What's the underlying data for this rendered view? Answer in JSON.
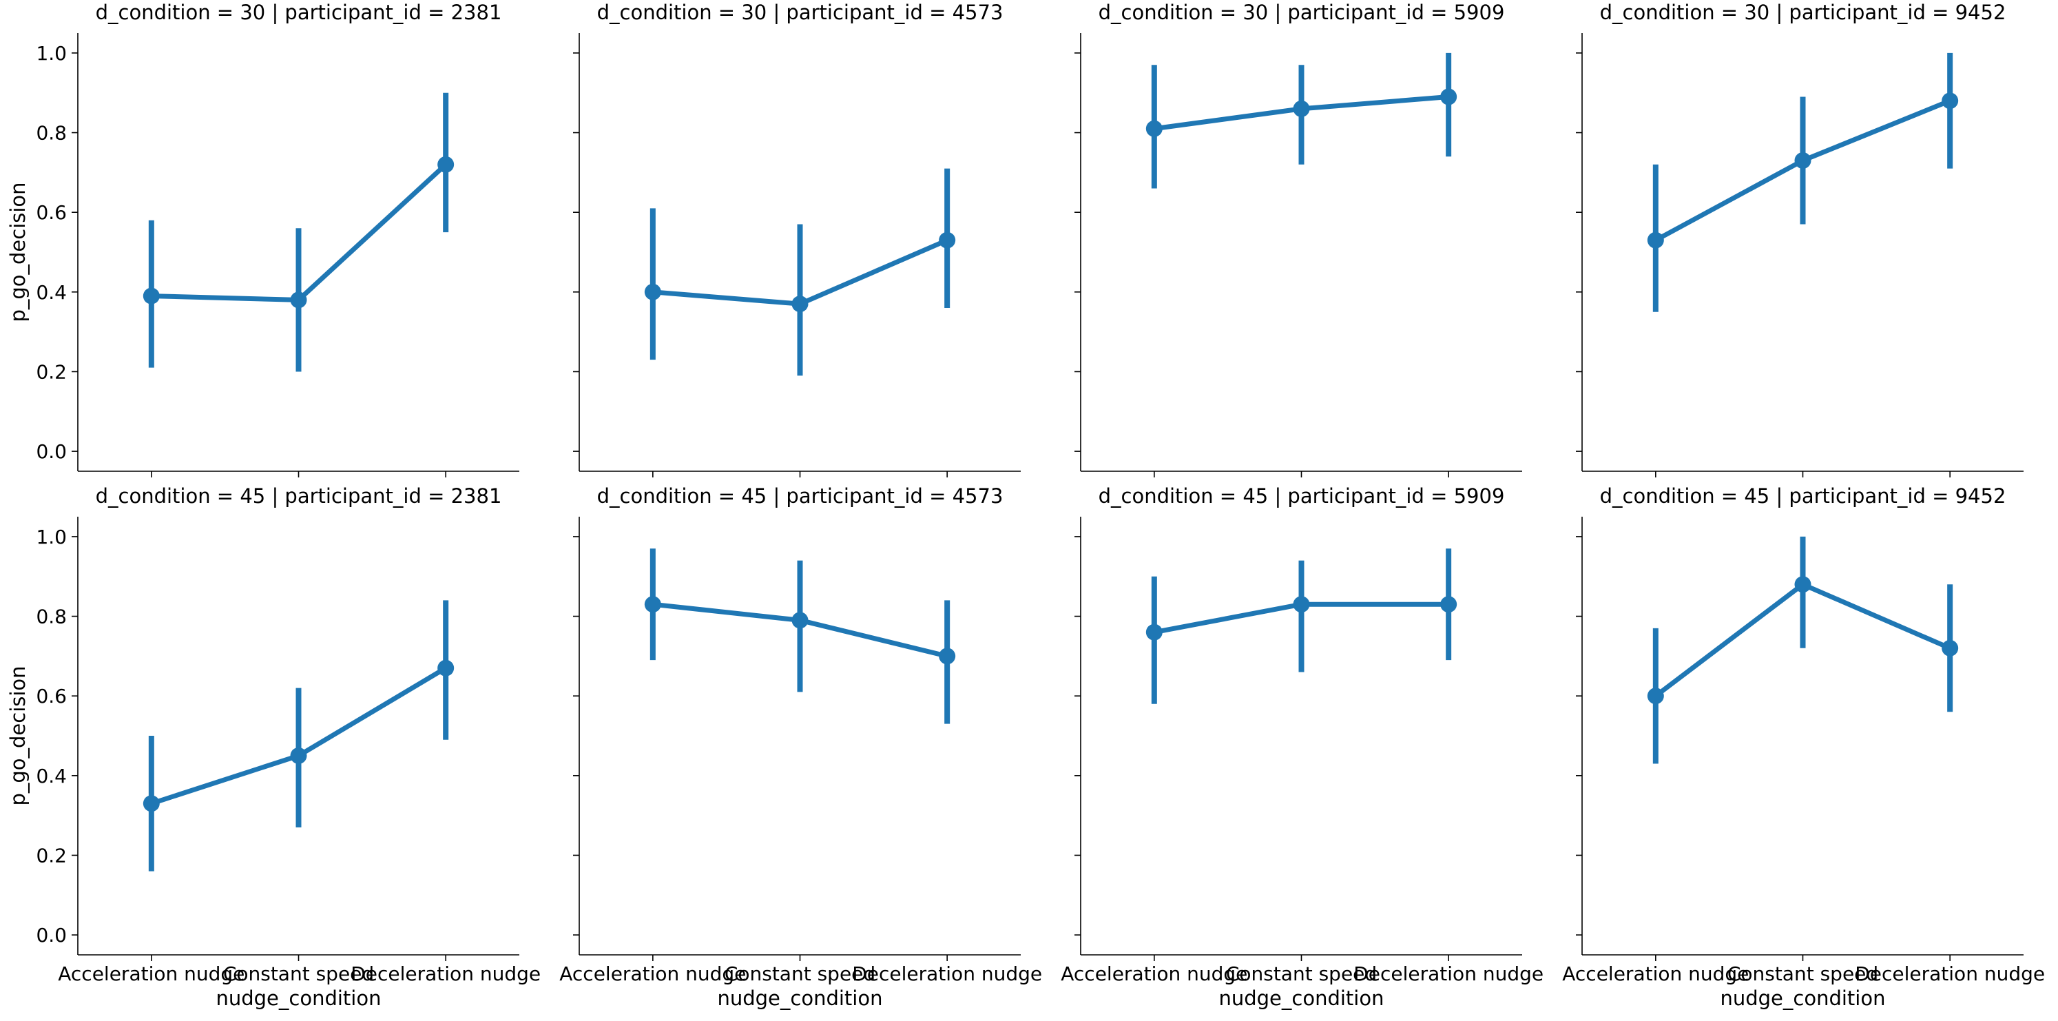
{
  "chart_data": {
    "type": "line",
    "facet_grid": {
      "rows": [
        30,
        45
      ],
      "cols": [
        2381,
        4573,
        5909,
        9452
      ],
      "row_var": "d_condition",
      "col_var": "participant_id"
    },
    "xlabel": "nudge_condition",
    "ylabel": "p_go_decision",
    "categories": [
      "Acceleration nudge",
      "Constant speed",
      "Deceleration nudge"
    ],
    "ylim": [
      -0.05,
      1.05
    ],
    "yticks": [
      "0.0",
      "0.2",
      "0.4",
      "0.6",
      "0.8",
      "1.0"
    ],
    "color": "#1f77b4",
    "grid": false,
    "panels": [
      {
        "title": "d_condition = 30 | participant_id = 2381",
        "values": [
          0.39,
          0.38,
          0.72
        ],
        "ci_low": [
          0.21,
          0.2,
          0.55
        ],
        "ci_high": [
          0.58,
          0.56,
          0.9
        ]
      },
      {
        "title": "d_condition = 30 | participant_id = 4573",
        "values": [
          0.4,
          0.37,
          0.53
        ],
        "ci_low": [
          0.23,
          0.19,
          0.36
        ],
        "ci_high": [
          0.61,
          0.57,
          0.71
        ]
      },
      {
        "title": "d_condition = 30 | participant_id = 5909",
        "values": [
          0.81,
          0.86,
          0.89
        ],
        "ci_low": [
          0.66,
          0.72,
          0.74
        ],
        "ci_high": [
          0.97,
          0.97,
          1.0
        ]
      },
      {
        "title": "d_condition = 30 | participant_id = 9452",
        "values": [
          0.53,
          0.73,
          0.88
        ],
        "ci_low": [
          0.35,
          0.57,
          0.71
        ],
        "ci_high": [
          0.72,
          0.89,
          1.0
        ]
      },
      {
        "title": "d_condition = 45 | participant_id = 2381",
        "values": [
          0.33,
          0.45,
          0.67
        ],
        "ci_low": [
          0.16,
          0.27,
          0.49
        ],
        "ci_high": [
          0.5,
          0.62,
          0.84
        ]
      },
      {
        "title": "d_condition = 45 | participant_id = 4573",
        "values": [
          0.83,
          0.79,
          0.7
        ],
        "ci_low": [
          0.69,
          0.61,
          0.53
        ],
        "ci_high": [
          0.97,
          0.94,
          0.84
        ]
      },
      {
        "title": "d_condition = 45 | participant_id = 5909",
        "values": [
          0.76,
          0.83,
          0.83
        ],
        "ci_low": [
          0.58,
          0.66,
          0.69
        ],
        "ci_high": [
          0.9,
          0.94,
          0.97
        ]
      },
      {
        "title": "d_condition = 45 | participant_id = 9452",
        "values": [
          0.6,
          0.88,
          0.72
        ],
        "ci_low": [
          0.43,
          0.72,
          0.56
        ],
        "ci_high": [
          0.77,
          1.0,
          0.88
        ]
      }
    ]
  }
}
